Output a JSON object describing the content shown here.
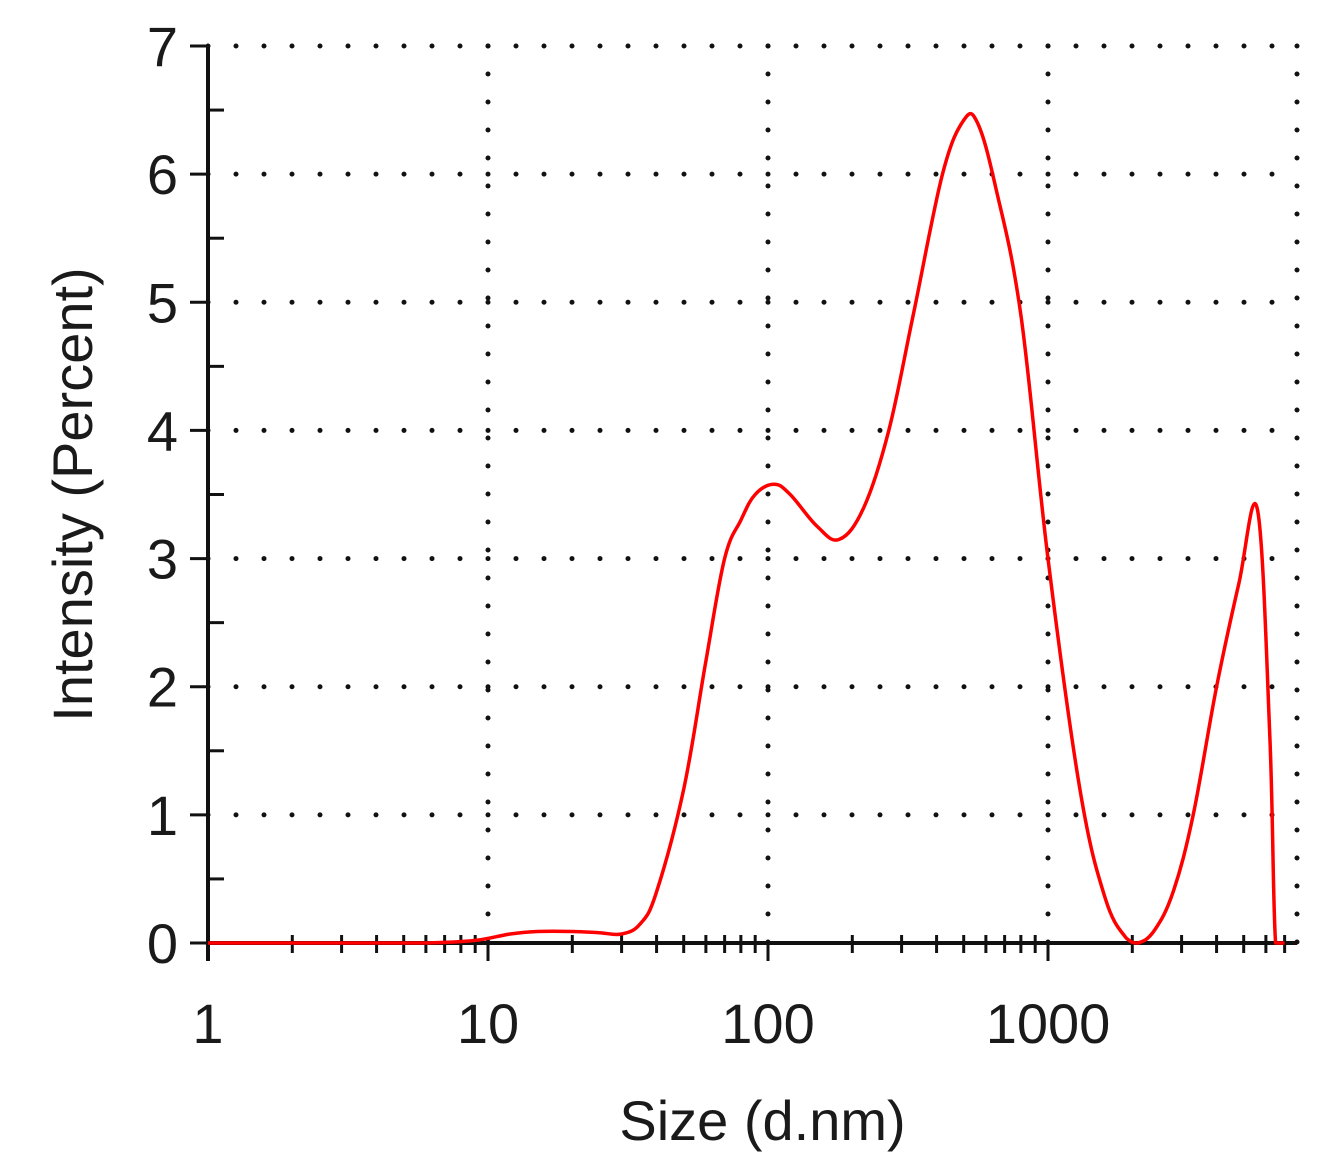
{
  "chart_data": {
    "type": "line",
    "title": "",
    "xlabel": "Size (d.nm)",
    "ylabel": "Intensity (Percent)",
    "xscale": "log",
    "xlim": [
      1,
      7000
    ],
    "ylim": [
      0,
      7
    ],
    "grid": true,
    "line_color": "#ff0000",
    "x_ticks": [
      {
        "value": 1,
        "label": "1"
      },
      {
        "value": 10,
        "label": "10"
      },
      {
        "value": 100,
        "label": "100"
      },
      {
        "value": 1000,
        "label": "1000"
      }
    ],
    "y_ticks": [
      {
        "value": 0,
        "label": "0"
      },
      {
        "value": 1,
        "label": "1"
      },
      {
        "value": 2,
        "label": "2"
      },
      {
        "value": 3,
        "label": "3"
      },
      {
        "value": 4,
        "label": "4"
      },
      {
        "value": 5,
        "label": "5"
      },
      {
        "value": 6,
        "label": "6"
      },
      {
        "value": 7,
        "label": "7"
      }
    ],
    "series": [
      {
        "points": [
          [
            1,
            0
          ],
          [
            3,
            0
          ],
          [
            6,
            0
          ],
          [
            9,
            0.02
          ],
          [
            12,
            0.07
          ],
          [
            15,
            0.09
          ],
          [
            20,
            0.09
          ],
          [
            25,
            0.08
          ],
          [
            30,
            0.07
          ],
          [
            35,
            0.15
          ],
          [
            40,
            0.4
          ],
          [
            50,
            1.2
          ],
          [
            60,
            2.2
          ],
          [
            70,
            3.0
          ],
          [
            80,
            3.3
          ],
          [
            90,
            3.5
          ],
          [
            105,
            3.58
          ],
          [
            120,
            3.5
          ],
          [
            150,
            3.25
          ],
          [
            180,
            3.15
          ],
          [
            220,
            3.4
          ],
          [
            270,
            4.0
          ],
          [
            330,
            4.9
          ],
          [
            420,
            6.0
          ],
          [
            500,
            6.42
          ],
          [
            560,
            6.4
          ],
          [
            650,
            5.9
          ],
          [
            800,
            4.9
          ],
          [
            1000,
            3.0
          ],
          [
            1300,
            1.2
          ],
          [
            1600,
            0.35
          ],
          [
            1900,
            0.04
          ],
          [
            2100,
            0.0
          ],
          [
            2400,
            0.1
          ],
          [
            2800,
            0.4
          ],
          [
            3300,
            1.0
          ],
          [
            4000,
            2.0
          ],
          [
            4800,
            2.8
          ],
          [
            5600,
            3.38
          ],
          [
            6200,
            1.6
          ],
          [
            6500,
            0.0
          ],
          [
            7000,
            0.0
          ]
        ]
      }
    ]
  }
}
